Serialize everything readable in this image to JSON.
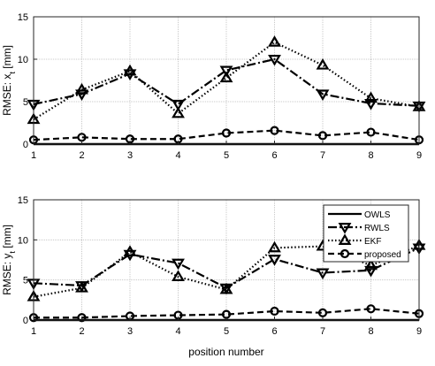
{
  "chart_data": [
    {
      "type": "line",
      "ylabel": "RMSE: x",
      "ylabel_sub": "t",
      "ylabel_unit": " [mm]",
      "xlabel": "",
      "x": [
        1,
        2,
        3,
        4,
        5,
        6,
        7,
        8,
        9
      ],
      "xlim": [
        1,
        9
      ],
      "ylim": [
        0,
        15
      ],
      "yticks": [
        0,
        5,
        10,
        15
      ],
      "grid": true,
      "series": [
        {
          "name": "OWLS",
          "color": "#000000",
          "style": "solid",
          "marker": "none",
          "values": [
            0,
            0,
            0,
            0,
            0,
            0,
            0,
            0,
            0
          ]
        },
        {
          "name": "RWLS",
          "color": "#000000",
          "style": "dashdot",
          "marker": "triangle-down",
          "values": [
            4.7,
            5.9,
            8.3,
            4.7,
            8.7,
            10.0,
            5.9,
            4.8,
            4.5
          ]
        },
        {
          "name": "EKF",
          "color": "#000000",
          "style": "dotted",
          "marker": "triangle-up",
          "values": [
            2.9,
            6.4,
            8.6,
            3.6,
            7.8,
            12.0,
            9.3,
            5.4,
            4.4
          ]
        },
        {
          "name": "proposed",
          "color": "#000000",
          "style": "dashed",
          "marker": "circle",
          "values": [
            0.5,
            0.8,
            0.6,
            0.6,
            1.3,
            1.6,
            1.0,
            1.4,
            0.5
          ]
        }
      ],
      "legend": null
    },
    {
      "type": "line",
      "ylabel": "RMSE: y",
      "ylabel_sub": "t",
      "ylabel_unit": " [mm]",
      "xlabel": "position number",
      "x": [
        1,
        2,
        3,
        4,
        5,
        6,
        7,
        8,
        9
      ],
      "xlim": [
        1,
        9
      ],
      "ylim": [
        0,
        15
      ],
      "yticks": [
        0,
        5,
        10,
        15
      ],
      "grid": true,
      "series": [
        {
          "name": "OWLS",
          "color": "#000000",
          "style": "solid",
          "marker": "none",
          "values": [
            0,
            0,
            0,
            0,
            0,
            0,
            0,
            0,
            0
          ]
        },
        {
          "name": "RWLS",
          "color": "#000000",
          "style": "dashdot",
          "marker": "triangle-down",
          "values": [
            4.6,
            4.3,
            8.2,
            7.1,
            4.0,
            7.6,
            5.9,
            6.2,
            9.0
          ]
        },
        {
          "name": "EKF",
          "color": "#000000",
          "style": "dotted",
          "marker": "triangle-up",
          "values": [
            2.9,
            4.0,
            8.5,
            5.4,
            3.8,
            9.0,
            9.2,
            6.8,
            9.3
          ]
        },
        {
          "name": "proposed",
          "color": "#000000",
          "style": "dashed",
          "marker": "circle",
          "values": [
            0.3,
            0.3,
            0.5,
            0.6,
            0.7,
            1.1,
            0.9,
            1.4,
            0.8
          ]
        }
      ],
      "legend": "top-right"
    }
  ]
}
